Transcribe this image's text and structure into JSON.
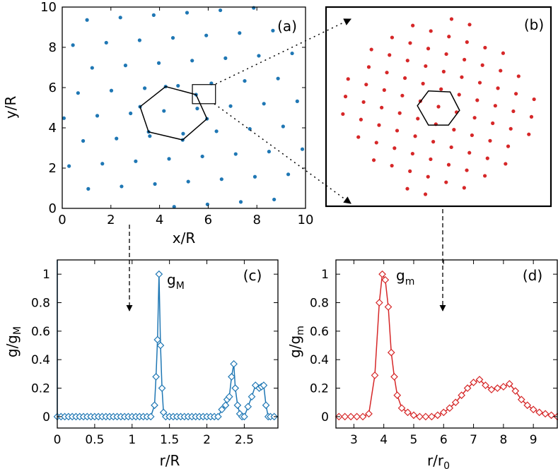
{
  "colors": {
    "blue": "#1f77b4",
    "red": "#d62728",
    "hex": "#000000"
  },
  "chart_data": [
    {
      "id": "a",
      "type": "scatter",
      "panel_label": "(a)",
      "xlabel": "x/R",
      "ylabel": "y/R",
      "xlim": [
        0,
        10
      ],
      "ylim": [
        0,
        10
      ],
      "xticks": [
        "0",
        "2",
        "4",
        "6",
        "8",
        "10"
      ],
      "yticks": [
        "0",
        "2",
        "4",
        "6",
        "8",
        "10"
      ],
      "lattice": {
        "a1": [
          1.37,
          0.12
        ],
        "a2": [
          0.58,
          1.25
        ],
        "origin": [
          0.28,
          2.1
        ]
      },
      "hexagon": [
        [
          4.25,
          6.05
        ],
        [
          5.5,
          5.65
        ],
        [
          5.95,
          4.45
        ],
        [
          4.95,
          3.4
        ],
        [
          3.55,
          3.8
        ],
        [
          3.2,
          5.05
        ]
      ],
      "zoom_box": {
        "x": [
          5.35,
          6.3
        ],
        "y": [
          5.2,
          6.15
        ]
      }
    },
    {
      "id": "b",
      "type": "scatter",
      "panel_label": "(b)",
      "xlim": [
        -5.6,
        5.6
      ],
      "ylim": [
        -5.4,
        5.4
      ],
      "lattice": {
        "a1": [
          0.9,
          -0.3
        ],
        "a2": [
          0.13,
          0.95
        ],
        "origin": [
          0,
          0
        ],
        "max_radius": 4.8
      },
      "hexagon": [
        [
          -0.5,
          0.85
        ],
        [
          0.58,
          0.8
        ],
        [
          1.05,
          -0.2
        ],
        [
          0.5,
          -1.0
        ],
        [
          -0.5,
          -1.0
        ],
        [
          -1.05,
          0.05
        ]
      ]
    },
    {
      "id": "c",
      "type": "line",
      "panel_label": "(c)",
      "series_label": "g",
      "series_sub": "M",
      "xlabel": "r/R",
      "ylabel_main": "g/g",
      "ylabel_sub": "M",
      "xlim": [
        0,
        2.95
      ],
      "ylim": [
        -0.08,
        1.1
      ],
      "xticks": [
        "0",
        "0.5",
        "1",
        "1.5",
        "2",
        "2.5"
      ],
      "yticks": [
        "0",
        "0.2",
        "0.4",
        "0.6",
        "0.8",
        "1"
      ],
      "x": [
        0.0,
        0.05,
        0.1,
        0.15,
        0.2,
        0.25,
        0.3,
        0.35,
        0.4,
        0.45,
        0.5,
        0.55,
        0.6,
        0.65,
        0.7,
        0.75,
        0.8,
        0.85,
        0.9,
        0.95,
        1.0,
        1.05,
        1.1,
        1.15,
        1.2,
        1.25,
        1.3,
        1.32,
        1.34,
        1.36,
        1.38,
        1.4,
        1.42,
        1.45,
        1.5,
        1.55,
        1.6,
        1.65,
        1.7,
        1.75,
        1.8,
        1.85,
        1.9,
        1.95,
        2.0,
        2.05,
        2.1,
        2.15,
        2.2,
        2.25,
        2.27,
        2.3,
        2.33,
        2.36,
        2.38,
        2.41,
        2.44,
        2.47,
        2.5,
        2.55,
        2.6,
        2.65,
        2.7,
        2.73,
        2.76,
        2.79,
        2.82,
        2.85,
        2.9
      ],
      "y": [
        0,
        0,
        0,
        0,
        0,
        0,
        0,
        0,
        0,
        0,
        0,
        0,
        0,
        0,
        0,
        0,
        0,
        0,
        0,
        0,
        0,
        0,
        0,
        0,
        0,
        0,
        0.08,
        0.28,
        0.54,
        1.0,
        0.5,
        0.2,
        0.03,
        0,
        0,
        0,
        0,
        0,
        0,
        0,
        0,
        0,
        0,
        0,
        0,
        0,
        0,
        0,
        0.05,
        0.08,
        0.12,
        0.14,
        0.28,
        0.37,
        0.2,
        0.08,
        0.02,
        0,
        0,
        0.07,
        0.14,
        0.22,
        0.2,
        0.21,
        0.22,
        0.08,
        0.0,
        0,
        0
      ]
    },
    {
      "id": "d",
      "type": "line",
      "panel_label": "(d)",
      "series_label": "g",
      "series_sub": "m",
      "xlabel_main": "r/r",
      "xlabel_sub": "0",
      "ylabel_main": "g/g",
      "ylabel_sub": "m",
      "xlim": [
        2.4,
        9.8
      ],
      "ylim": [
        -0.08,
        1.1
      ],
      "xticks": [
        "3",
        "4",
        "5",
        "6",
        "7",
        "8",
        "9"
      ],
      "yticks": [
        "0",
        "0.2",
        "0.4",
        "0.6",
        "0.8",
        "1"
      ],
      "x": [
        2.5,
        2.7,
        2.9,
        3.1,
        3.3,
        3.5,
        3.7,
        3.85,
        3.95,
        4.05,
        4.15,
        4.25,
        4.35,
        4.45,
        4.6,
        4.8,
        5.0,
        5.2,
        5.4,
        5.6,
        5.8,
        6.0,
        6.2,
        6.4,
        6.6,
        6.8,
        7.0,
        7.2,
        7.4,
        7.6,
        7.8,
        8.0,
        8.2,
        8.4,
        8.6,
        8.8,
        9.0,
        9.2,
        9.4,
        9.6,
        9.8
      ],
      "y": [
        0,
        0,
        0,
        0,
        0,
        0.02,
        0.29,
        0.8,
        1.0,
        0.96,
        0.77,
        0.45,
        0.28,
        0.15,
        0.06,
        0.03,
        0.01,
        0,
        0,
        0,
        0.01,
        0.03,
        0.06,
        0.1,
        0.15,
        0.2,
        0.24,
        0.26,
        0.22,
        0.19,
        0.2,
        0.21,
        0.23,
        0.18,
        0.12,
        0.08,
        0.05,
        0.03,
        0.02,
        0.01,
        0
      ]
    }
  ]
}
